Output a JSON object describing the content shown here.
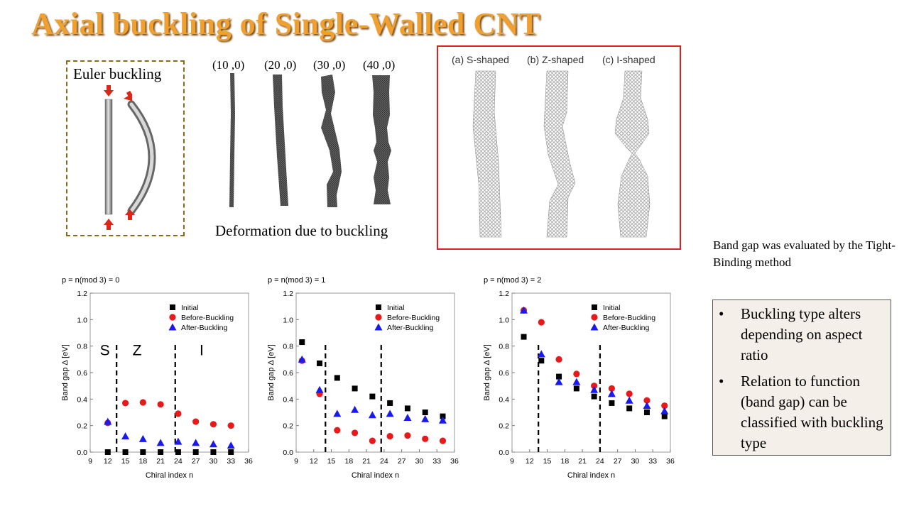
{
  "slide_title": "Axial buckling of Single-Walled CNT",
  "euler_label": "Euler  buckling",
  "tube_labels": [
    "(10 ,0)",
    "(20 ,0)",
    "(30 ,0)",
    "(40 ,0)"
  ],
  "deformation_caption": "Deformation due to buckling",
  "shape_labels": [
    "(a) S-shaped",
    "(b) Z-shaped",
    "(c) I-shaped"
  ],
  "band_gap_note": "Band gap was evaluated by the Tight-Binding  method",
  "conclusions": [
    "Buckling type alters depending on aspect ratio",
    "Relation to function (band gap) can be classified with buckling type"
  ],
  "bullet_symbol": "•",
  "colors": {
    "title": "#f0a030",
    "initial": "#000000",
    "before_buckling": "#e8191b",
    "after_buckling": "#1a1aee",
    "highlight_border": "#e0201e",
    "euler_border": "#8b6b1a"
  },
  "chart_data": [
    {
      "type": "scatter",
      "title": "p = n(mod 3) = 0",
      "xlabel": "Chiral index n",
      "ylabel": "Band gap Δ [eV]",
      "xlim": [
        9,
        36
      ],
      "ylim": [
        0,
        1.2
      ],
      "xticks": [
        9,
        12,
        15,
        18,
        21,
        24,
        27,
        30,
        33,
        36
      ],
      "yticks": [
        0.0,
        0.2,
        0.4,
        0.6,
        0.8,
        1.0,
        1.2
      ],
      "legend_position": "top-right",
      "series": [
        {
          "name": "Initial",
          "marker": "square",
          "x": [
            12,
            15,
            18,
            21,
            24,
            27,
            30,
            33
          ],
          "y": [
            0.0,
            0.0,
            0.0,
            0.0,
            0.0,
            0.0,
            0.0,
            0.0
          ]
        },
        {
          "name": "Before-Buckling",
          "marker": "circle",
          "x": [
            12,
            15,
            18,
            21,
            24,
            27,
            30,
            33
          ],
          "y": [
            0.22,
            0.37,
            0.375,
            0.36,
            0.29,
            0.23,
            0.21,
            0.2
          ]
        },
        {
          "name": "After-Buckling",
          "marker": "triangle",
          "x": [
            12,
            15,
            18,
            21,
            24,
            27,
            30,
            33
          ],
          "y": [
            0.23,
            0.12,
            0.1,
            0.07,
            0.08,
            0.07,
            0.06,
            0.05
          ]
        }
      ],
      "dividers": [
        13.5,
        23.5
      ],
      "region_labels": [
        {
          "text": "S",
          "x": 11.5,
          "y": 0.73
        },
        {
          "text": "Z",
          "x": 17,
          "y": 0.73
        },
        {
          "text": "I",
          "x": 28,
          "y": 0.73
        }
      ]
    },
    {
      "type": "scatter",
      "title": "p = n(mod 3) = 1",
      "xlabel": "Chiral index n",
      "ylabel": "Band gap Δ [eV]",
      "xlim": [
        9,
        36
      ],
      "ylim": [
        0,
        1.2
      ],
      "xticks": [
        9,
        12,
        15,
        18,
        21,
        24,
        27,
        30,
        33,
        36
      ],
      "yticks": [
        0.0,
        0.2,
        0.4,
        0.6,
        0.8,
        1.0,
        1.2
      ],
      "legend_position": "top-right",
      "series": [
        {
          "name": "Initial",
          "marker": "square",
          "x": [
            10,
            13,
            16,
            19,
            22,
            25,
            28,
            31,
            34
          ],
          "y": [
            0.83,
            0.67,
            0.56,
            0.48,
            0.42,
            0.37,
            0.33,
            0.3,
            0.27
          ]
        },
        {
          "name": "Before-Buckling",
          "marker": "circle",
          "x": [
            10,
            13,
            16,
            19,
            22,
            25,
            28,
            31,
            34
          ],
          "y": [
            0.69,
            0.44,
            0.165,
            0.145,
            0.085,
            0.12,
            0.125,
            0.1,
            0.085
          ]
        },
        {
          "name": "After-Buckling",
          "marker": "triangle",
          "x": [
            10,
            13,
            16,
            19,
            22,
            25,
            28,
            31,
            34
          ],
          "y": [
            0.7,
            0.47,
            0.29,
            0.32,
            0.28,
            0.29,
            0.26,
            0.25,
            0.24
          ]
        }
      ],
      "dividers": [
        14,
        23.5
      ],
      "region_labels": []
    },
    {
      "type": "scatter",
      "title": "p = n(mod 3) = 2",
      "xlabel": "Chiral index n",
      "ylabel": "Band gap Δ [eV]",
      "xlim": [
        9,
        36
      ],
      "ylim": [
        0,
        1.2
      ],
      "xticks": [
        9,
        12,
        15,
        18,
        21,
        24,
        27,
        30,
        33,
        36
      ],
      "yticks": [
        0.0,
        0.2,
        0.4,
        0.6,
        0.8,
        1.0,
        1.2
      ],
      "legend_position": "top-right",
      "series": [
        {
          "name": "Initial",
          "marker": "square",
          "x": [
            11,
            14,
            17,
            20,
            23,
            26,
            29,
            32,
            35
          ],
          "y": [
            0.87,
            0.69,
            0.57,
            0.48,
            0.42,
            0.37,
            0.33,
            0.3,
            0.27
          ]
        },
        {
          "name": "Before-Buckling",
          "marker": "circle",
          "x": [
            11,
            14,
            17,
            20,
            23,
            26,
            29,
            32,
            35
          ],
          "y": [
            1.07,
            0.98,
            0.7,
            0.59,
            0.5,
            0.48,
            0.44,
            0.39,
            0.35
          ]
        },
        {
          "name": "After-Buckling",
          "marker": "triangle",
          "x": [
            11,
            14,
            17,
            20,
            23,
            26,
            29,
            32,
            35
          ],
          "y": [
            1.07,
            0.74,
            0.53,
            0.53,
            0.47,
            0.44,
            0.39,
            0.35,
            0.31
          ]
        }
      ],
      "dividers": [
        13.5,
        24
      ],
      "region_labels": []
    }
  ]
}
